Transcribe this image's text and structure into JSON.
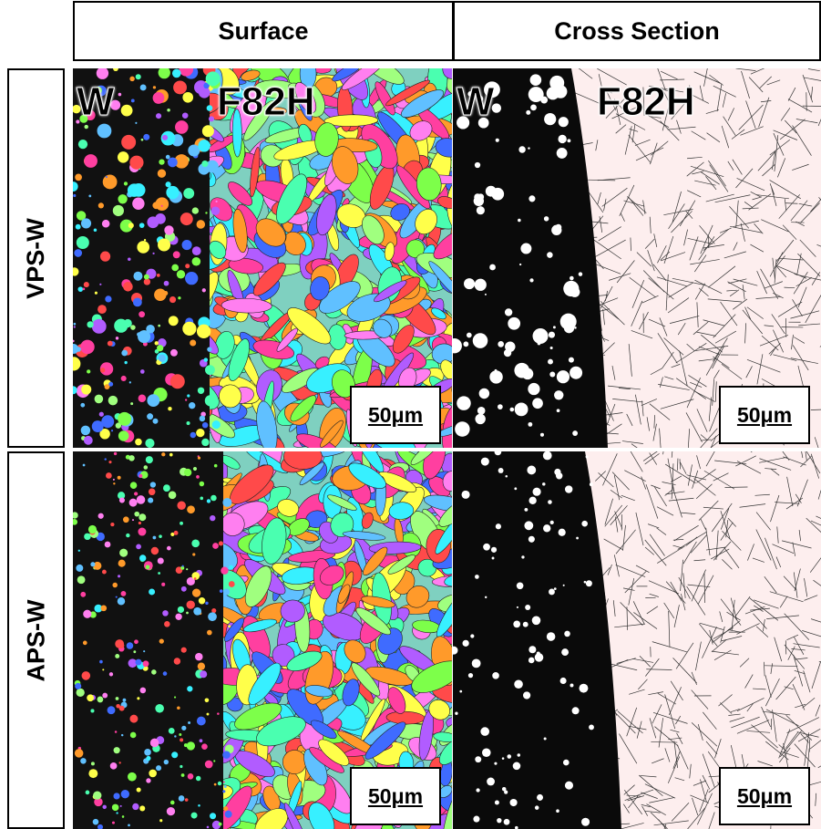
{
  "columns": [
    "Surface",
    "Cross Section"
  ],
  "rows": [
    {
      "label": "VPS-W",
      "panels": [
        {
          "labels": [
            "W",
            "F82H"
          ],
          "scale_bar": "50μm"
        },
        {
          "labels": [
            "W",
            "F82H"
          ],
          "scale_bar": "50μm"
        }
      ]
    },
    {
      "label": "APS-W",
      "panels": [
        {
          "scale_bar": "50μm"
        },
        {
          "scale_bar": "50μm"
        }
      ]
    }
  ]
}
